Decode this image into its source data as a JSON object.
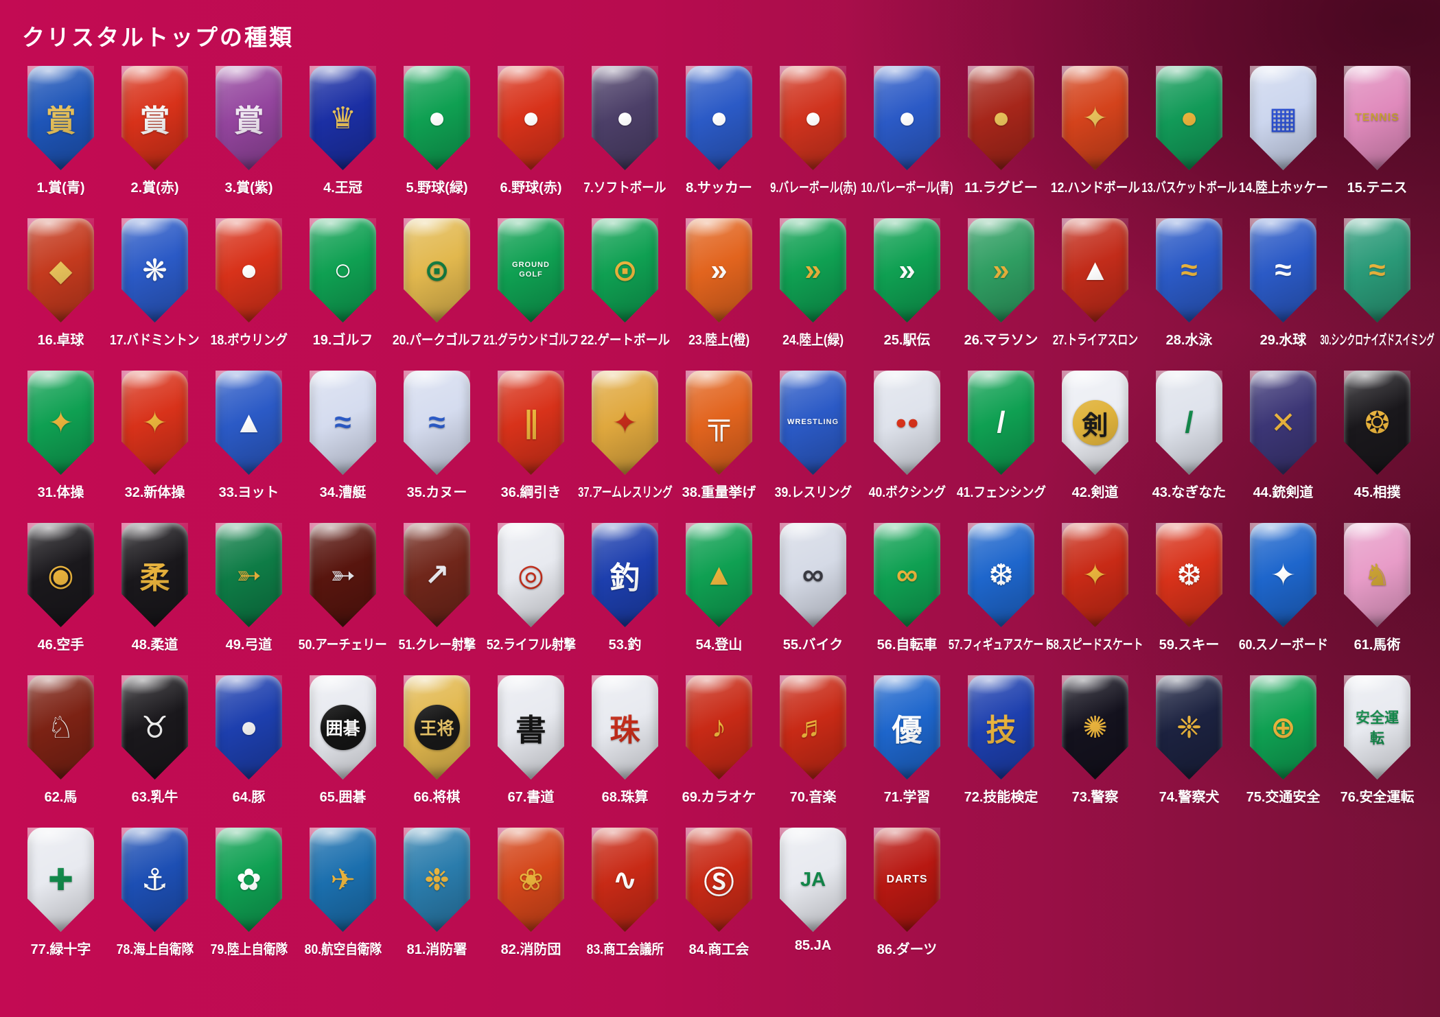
{
  "page": {
    "title": "クリスタルトップの種類",
    "background_primary": "#c30b53",
    "background_dark": "#731136"
  },
  "rows": [
    [
      {
        "label": "1.賞(青)",
        "icon_name": "award-kanji-blue",
        "glyph": "賞",
        "bg": "#1e55b8",
        "fg": "#e6c05a"
      },
      {
        "label": "2.賞(赤)",
        "icon_name": "award-kanji-red",
        "glyph": "賞",
        "bg": "#d8321a",
        "fg": "#f5f5f5"
      },
      {
        "label": "3.賞(紫)",
        "icon_name": "award-kanji-purple",
        "glyph": "賞",
        "bg": "#94459e",
        "fg": "#f0e8f2"
      },
      {
        "label": "4.王冠",
        "icon_name": "crown",
        "glyph": "♛",
        "bg": "#1b2fa4",
        "fg": "#e6c05a"
      },
      {
        "label": "5.野球(緑)",
        "icon_name": "baseball-green",
        "glyph": "●",
        "bg": "#0fa052",
        "fg": "#ffffff"
      },
      {
        "label": "6.野球(赤)",
        "icon_name": "baseball-red",
        "glyph": "●",
        "bg": "#d8321a",
        "fg": "#ffffff"
      },
      {
        "label": "7.ソフトボール",
        "icon_name": "softball",
        "glyph": "●",
        "bg": "#4c3f68",
        "fg": "#ffffff"
      },
      {
        "label": "8.サッカー",
        "icon_name": "soccer-ball",
        "glyph": "●",
        "bg": "#2b5ac6",
        "fg": "#ffffff"
      },
      {
        "label": "9.バレーボール(赤)",
        "icon_name": "volleyball-red",
        "glyph": "●",
        "bg": "#d0331e",
        "fg": "#ffffff"
      },
      {
        "label": "10.バレーボール(青)",
        "icon_name": "volleyball-blue",
        "glyph": "●",
        "bg": "#2b5ac6",
        "fg": "#ffffff"
      },
      {
        "label": "11.ラグビー",
        "icon_name": "rugby-ball",
        "glyph": "●",
        "bg": "#a6261a",
        "fg": "#e6c05a"
      },
      {
        "label": "12.ハンドボール",
        "icon_name": "handball-player",
        "glyph": "✦",
        "bg": "#d4431c",
        "fg": "#e6c05a"
      },
      {
        "label": "13.バスケットボール",
        "icon_name": "basketball",
        "glyph": "●",
        "bg": "#129a58",
        "fg": "#e8b23c"
      },
      {
        "label": "14.陸上ホッケー",
        "icon_name": "field-hockey",
        "glyph": "▦",
        "bg": "#ccd6ee",
        "fg": "#2b4fd0"
      },
      {
        "label": "15.テニス",
        "icon_name": "tennis-racket",
        "glyph": "TENNIS",
        "bg": "#e08abc",
        "fg": "#c8a034"
      }
    ],
    [
      {
        "label": "16.卓球",
        "icon_name": "table-tennis-paddle",
        "glyph": "◆",
        "bg": "#c43a1e",
        "fg": "#e6c05a"
      },
      {
        "label": "17.バドミントン",
        "icon_name": "shuttlecock",
        "glyph": "❋",
        "bg": "#2b5ac6",
        "fg": "#ffffff"
      },
      {
        "label": "18.ボウリング",
        "icon_name": "bowling-pins",
        "glyph": "●",
        "bg": "#d8321a",
        "fg": "#ffffff"
      },
      {
        "label": "19.ゴルフ",
        "icon_name": "golf-ball",
        "glyph": "○",
        "bg": "#0fa052",
        "fg": "#ffffff"
      },
      {
        "label": "20.パークゴルフ",
        "icon_name": "park-golf",
        "glyph": "⊙",
        "bg": "#e2b84e",
        "fg": "#137a40"
      },
      {
        "label": "21.グラウンドゴルフ",
        "icon_name": "ground-golf-clubs",
        "glyph": "GROUND GOLF",
        "bg": "#0fa052",
        "fg": "#ffffff"
      },
      {
        "label": "22.ゲートボール",
        "icon_name": "gateball-mallet",
        "glyph": "⊙",
        "bg": "#0fa052",
        "fg": "#e8b23c"
      },
      {
        "label": "23.陸上(橙)",
        "icon_name": "track-runner-orange",
        "glyph": "»",
        "bg": "#e2641e",
        "fg": "#ffffff"
      },
      {
        "label": "24.陸上(緑)",
        "icon_name": "track-runner-green",
        "glyph": "»",
        "bg": "#0fa052",
        "fg": "#e8b23c"
      },
      {
        "label": "25.駅伝",
        "icon_name": "ekiden-runners",
        "glyph": "»",
        "bg": "#0fa052",
        "fg": "#ffffff"
      },
      {
        "label": "26.マラソン",
        "icon_name": "marathon-runners",
        "glyph": "»",
        "bg": "#2f9e62",
        "fg": "#e8b23c"
      },
      {
        "label": "27.トライアスロン",
        "icon_name": "triathlon",
        "glyph": "▲",
        "bg": "#c22c1a",
        "fg": "#ffffff"
      },
      {
        "label": "28.水泳",
        "icon_name": "swimmer-waves",
        "glyph": "≈",
        "bg": "#2b5ac6",
        "fg": "#e8b23c"
      },
      {
        "label": "29.水球",
        "icon_name": "water-polo",
        "glyph": "≈",
        "bg": "#2b5ac6",
        "fg": "#ffffff"
      },
      {
        "label": "30.シンクロナイズドスイミング",
        "icon_name": "synchronized-swimming",
        "glyph": "≈",
        "bg": "#2a9a78",
        "fg": "#e8b23c"
      }
    ],
    [
      {
        "label": "31.体操",
        "icon_name": "gymnast",
        "glyph": "✦",
        "bg": "#0fa052",
        "fg": "#e8b23c"
      },
      {
        "label": "32.新体操",
        "icon_name": "rhythmic-gymnast",
        "glyph": "✦",
        "bg": "#d8321a",
        "fg": "#e8b23c"
      },
      {
        "label": "33.ヨット",
        "icon_name": "yacht-sail",
        "glyph": "▲",
        "bg": "#2b5ac6",
        "fg": "#ffffff"
      },
      {
        "label": "34.漕艇",
        "icon_name": "rowing-crew",
        "glyph": "≈",
        "bg": "#d5dcef",
        "fg": "#2b5ac6"
      },
      {
        "label": "35.カヌー",
        "icon_name": "canoe-paddler",
        "glyph": "≈",
        "bg": "#d5dcef",
        "fg": "#2b5ac6"
      },
      {
        "label": "36.綱引き",
        "icon_name": "tug-of-war-rope",
        "glyph": "∥",
        "bg": "#d8321a",
        "fg": "#e8b23c"
      },
      {
        "label": "37.アームレスリング",
        "icon_name": "arm-wrestling",
        "glyph": "✦",
        "bg": "#e0a83e",
        "fg": "#c22c1a"
      },
      {
        "label": "38.重量挙げ",
        "icon_name": "weightlifter-barbell",
        "glyph": "╦",
        "bg": "#e2641e",
        "fg": "#ffffff"
      },
      {
        "label": "39.レスリング",
        "icon_name": "wrestling",
        "glyph": "WRESTLING",
        "bg": "#2b5ac6",
        "fg": "#ffffff"
      },
      {
        "label": "40.ボクシング",
        "icon_name": "boxing-gloves",
        "glyph": "●●",
        "bg": "#dfe3ec",
        "fg": "#d8321a"
      },
      {
        "label": "41.フェンシング",
        "icon_name": "fencing-foil",
        "glyph": "/",
        "bg": "#0fa052",
        "fg": "#ffffff"
      },
      {
        "label": "42.剣道",
        "icon_name": "kendo-kanji",
        "glyph": "剣",
        "bg": "#eceef4",
        "fg": "#1a1a1a",
        "disc": "#e0b33c"
      },
      {
        "label": "43.なぎなた",
        "icon_name": "naginata",
        "glyph": "/",
        "bg": "#dfe3ec",
        "fg": "#12884a"
      },
      {
        "label": "44.銃剣道",
        "icon_name": "jukendo-crossed-rifles",
        "glyph": "✕",
        "bg": "#3c3676",
        "fg": "#e8b23c"
      },
      {
        "label": "45.相撲",
        "icon_name": "sumo-rope",
        "glyph": "❂",
        "bg": "#1a181c",
        "fg": "#e8b23c"
      }
    ],
    [
      {
        "label": "46.空手",
        "icon_name": "karate-fist-laurel",
        "glyph": "◉",
        "bg": "#1a181c",
        "fg": "#e8b23c"
      },
      {
        "label": "48.柔道",
        "icon_name": "judo-kanji",
        "glyph": "柔",
        "bg": "#1a181c",
        "fg": "#e8b23c"
      },
      {
        "label": "49.弓道",
        "icon_name": "kyudo-bow",
        "glyph": "➳",
        "bg": "#0e7c46",
        "fg": "#e8b23c"
      },
      {
        "label": "50.アーチェリー",
        "icon_name": "archery-bow-arrow",
        "glyph": "➳",
        "bg": "#58150e",
        "fg": "#e8e8ee"
      },
      {
        "label": "51.クレー射撃",
        "icon_name": "clay-shooting",
        "glyph": "↗",
        "bg": "#70261a",
        "fg": "#e8e8ee"
      },
      {
        "label": "52.ライフル射撃",
        "icon_name": "rifle-target",
        "glyph": "◎",
        "bg": "#e8eaf0",
        "fg": "#c22c1a"
      },
      {
        "label": "53.釣",
        "icon_name": "fishing-kanji",
        "glyph": "釣",
        "bg": "#1d3fae",
        "fg": "#ffffff"
      },
      {
        "label": "54.登山",
        "icon_name": "mountain-climber",
        "glyph": "▲",
        "bg": "#0fa052",
        "fg": "#e8b23c"
      },
      {
        "label": "55.バイク",
        "icon_name": "motocross-bike",
        "glyph": "∞",
        "bg": "#d5dae6",
        "fg": "#3a3a42"
      },
      {
        "label": "56.自転車",
        "icon_name": "cyclist",
        "glyph": "∞",
        "bg": "#0fa052",
        "fg": "#e8b23c"
      },
      {
        "label": "57.フィギュアスケート",
        "icon_name": "figure-skates",
        "glyph": "❆",
        "bg": "#1e66cc",
        "fg": "#ffffff"
      },
      {
        "label": "58.スピードスケート",
        "icon_name": "speed-skater",
        "glyph": "✦",
        "bg": "#c82a16",
        "fg": "#e8b23c"
      },
      {
        "label": "59.スキー",
        "icon_name": "skier",
        "glyph": "❆",
        "bg": "#d8321a",
        "fg": "#ffffff"
      },
      {
        "label": "60.スノーボード",
        "icon_name": "snowboarder",
        "glyph": "✦",
        "bg": "#1e66cc",
        "fg": "#ffffff"
      },
      {
        "label": "61.馬術",
        "icon_name": "equestrian-rider",
        "glyph": "♞",
        "bg": "#e89cc8",
        "fg": "#c8a034"
      }
    ],
    [
      {
        "label": "62.馬",
        "icon_name": "horse",
        "glyph": "♘",
        "bg": "#7c2214",
        "fg": "#eeeeee"
      },
      {
        "label": "63.乳牛",
        "icon_name": "dairy-cow",
        "glyph": "♉",
        "bg": "#1a181c",
        "fg": "#eeeeee"
      },
      {
        "label": "64.豚",
        "icon_name": "pig",
        "glyph": "●",
        "bg": "#1d3fae",
        "fg": "#eeeeee"
      },
      {
        "label": "65.囲碁",
        "icon_name": "go-stone",
        "glyph": "囲碁",
        "bg": "#e8eaf0",
        "fg": "#ffffff",
        "disc": "#141414"
      },
      {
        "label": "66.将棋",
        "icon_name": "shogi-piece",
        "glyph": "王将",
        "bg": "#e2b84e",
        "fg": "#e8c468",
        "disc": "#181818"
      },
      {
        "label": "67.書道",
        "icon_name": "calligraphy-brush",
        "glyph": "書",
        "bg": "#e8eaf0",
        "fg": "#141414"
      },
      {
        "label": "68.珠算",
        "icon_name": "abacus",
        "glyph": "珠",
        "bg": "#e8eaf0",
        "fg": "#c22c1a"
      },
      {
        "label": "69.カラオケ",
        "icon_name": "karaoke-microphone",
        "glyph": "♪",
        "bg": "#c82a16",
        "fg": "#e8b23c"
      },
      {
        "label": "70.音楽",
        "icon_name": "music-clef",
        "glyph": "♬",
        "bg": "#c82a16",
        "fg": "#e8b23c"
      },
      {
        "label": "71.学習",
        "icon_name": "study-book",
        "glyph": "優",
        "bg": "#1e66cc",
        "fg": "#ffffff"
      },
      {
        "label": "72.技能検定",
        "icon_name": "skill-certification-emblem",
        "glyph": "技",
        "bg": "#1d3fae",
        "fg": "#e8b23c"
      },
      {
        "label": "73.警察",
        "icon_name": "police-emblem",
        "glyph": "✺",
        "bg": "#14121e",
        "fg": "#e8b23c"
      },
      {
        "label": "74.警察犬",
        "icon_name": "police-dog-emblem",
        "glyph": "❈",
        "bg": "#1c2240",
        "fg": "#e8b23c"
      },
      {
        "label": "75.交通安全",
        "icon_name": "traffic-safety-cross",
        "glyph": "⊕",
        "bg": "#0fa052",
        "fg": "#e8b23c"
      },
      {
        "label": "76.安全運転",
        "icon_name": "safe-driving-bicycle",
        "glyph": "安全運転",
        "bg": "#e8eaf0",
        "fg": "#12884a"
      }
    ],
    [
      {
        "label": "77.緑十字",
        "icon_name": "green-cross",
        "glyph": "✚",
        "bg": "#e8eaf0",
        "fg": "#12884a"
      },
      {
        "label": "78.海上自衛隊",
        "icon_name": "maritime-sdf-anchor",
        "glyph": "⚓",
        "bg": "#1d4fb4",
        "fg": "#ffffff"
      },
      {
        "label": "79.陸上自衛隊",
        "icon_name": "ground-sdf-blossom",
        "glyph": "✿",
        "bg": "#0fa052",
        "fg": "#ffffff"
      },
      {
        "label": "80.航空自衛隊",
        "icon_name": "air-sdf-wings",
        "glyph": "✈",
        "bg": "#1b6fae",
        "fg": "#e8b23c"
      },
      {
        "label": "81.消防署",
        "icon_name": "fire-department-emblem",
        "glyph": "❉",
        "bg": "#2a7cac",
        "fg": "#e8b23c"
      },
      {
        "label": "82.消防団",
        "icon_name": "fire-brigade-blossom",
        "glyph": "❀",
        "bg": "#d4461a",
        "fg": "#e8b23c"
      },
      {
        "label": "83.商工会議所",
        "icon_name": "chamber-of-commerce-mark",
        "glyph": "∿",
        "bg": "#c82a16",
        "fg": "#ffffff"
      },
      {
        "label": "84.商工会",
        "icon_name": "commerce-association-gear",
        "glyph": "Ⓢ",
        "bg": "#c82a16",
        "fg": "#ffffff"
      },
      {
        "label": "85.JA",
        "icon_name": "ja-logo",
        "glyph": "JA",
        "bg": "#e8eaf0",
        "fg": "#12884a"
      },
      {
        "label": "86.ダーツ",
        "icon_name": "darts-board",
        "glyph": "DARTS",
        "bg": "#b81812",
        "fg": "#ffffff"
      }
    ]
  ]
}
